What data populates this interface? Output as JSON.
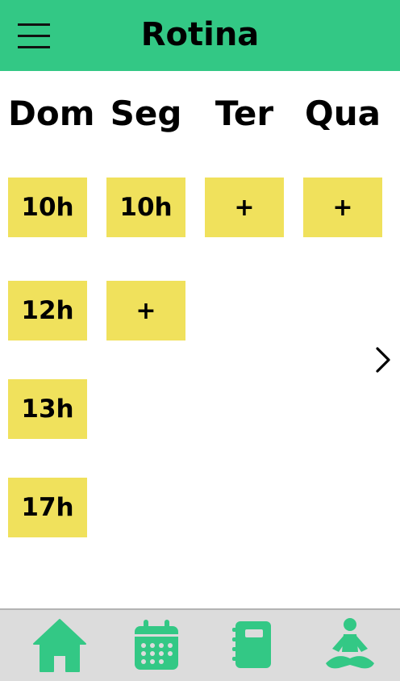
{
  "app": {
    "title": "Rotina",
    "accent_color": "#33c885",
    "slot_color": "#f0e15c"
  },
  "header": {
    "menu_icon": "hamburger-menu-icon"
  },
  "days": [
    {
      "label": "Dom",
      "slots": [
        "10h",
        "12h",
        "13h",
        "17h"
      ]
    },
    {
      "label": "Seg",
      "slots": [
        "10h",
        "+"
      ]
    },
    {
      "label": "Ter",
      "slots": [
        "+"
      ]
    },
    {
      "label": "Qua",
      "slots": [
        "+"
      ]
    }
  ],
  "navigation": {
    "next_icon": "chevron-right-icon"
  },
  "bottom_nav": {
    "items": [
      {
        "icon": "home-icon"
      },
      {
        "icon": "calendar-icon"
      },
      {
        "icon": "notebook-icon"
      },
      {
        "icon": "meditation-icon"
      }
    ]
  }
}
